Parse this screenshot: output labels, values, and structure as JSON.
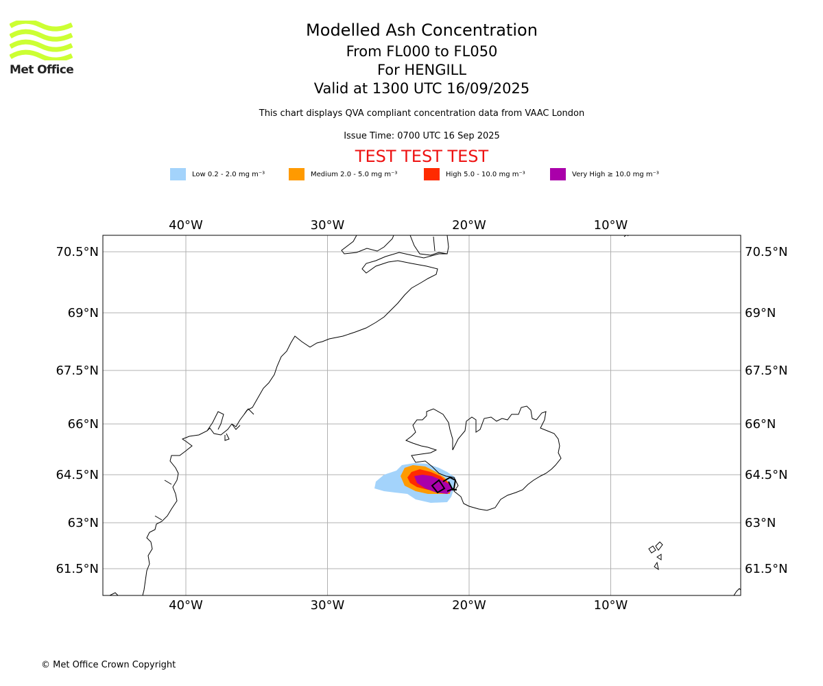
{
  "brand": {
    "logo_text": "Met Office",
    "logo_color": "#ccff33"
  },
  "header": {
    "title": "Modelled Ash Concentration",
    "flight_levels": "From FL000 to FL050",
    "volcano": "For HENGILL",
    "valid_time": "Valid at 1300 UTC 16/09/2025",
    "description": "This chart displays QVA compliant concentration data from VAAC London",
    "issue_time": "Issue Time: 0700 UTC 16 Sep 2025",
    "test_banner": "TEST TEST TEST",
    "test_banner_color": "#ee1111"
  },
  "legend": [
    {
      "label": "Low 0.2 - 2.0 mg m⁻³",
      "color": "#a3d3fb"
    },
    {
      "label": "Medium 2.0 - 5.0 mg m⁻³",
      "color": "#ff9a00"
    },
    {
      "label": "High 5.0 - 10.0 mg m⁻³",
      "color": "#ff2b00"
    },
    {
      "label": "Very High ≥ 10.0 mg m⁻³",
      "color": "#aa00aa"
    }
  ],
  "map": {
    "region": "Greenland – Iceland",
    "lon_range": [
      -45.9,
      -0.9
    ],
    "lat_range": [
      60.8,
      70.9
    ],
    "lon_ticks": [
      {
        "value": -40,
        "label": "40°W"
      },
      {
        "value": -30,
        "label": "30°W"
      },
      {
        "value": -20,
        "label": "20°W"
      },
      {
        "value": -10,
        "label": "10°W"
      }
    ],
    "lat_ticks": [
      {
        "value": 70.5,
        "label": "70.5°N"
      },
      {
        "value": 69.0,
        "label": "69°N"
      },
      {
        "value": 67.5,
        "label": "67.5°N"
      },
      {
        "value": 66.0,
        "label": "66°N"
      },
      {
        "value": 64.5,
        "label": "64.5°N"
      },
      {
        "value": 63.0,
        "label": "63°N"
      },
      {
        "value": 61.5,
        "label": "61.5°N"
      }
    ],
    "grid": true,
    "gridline_color": "#b0b0b0",
    "coastline_color": "#000000"
  },
  "footer": {
    "copyright": "© Met Office Crown Copyright"
  }
}
